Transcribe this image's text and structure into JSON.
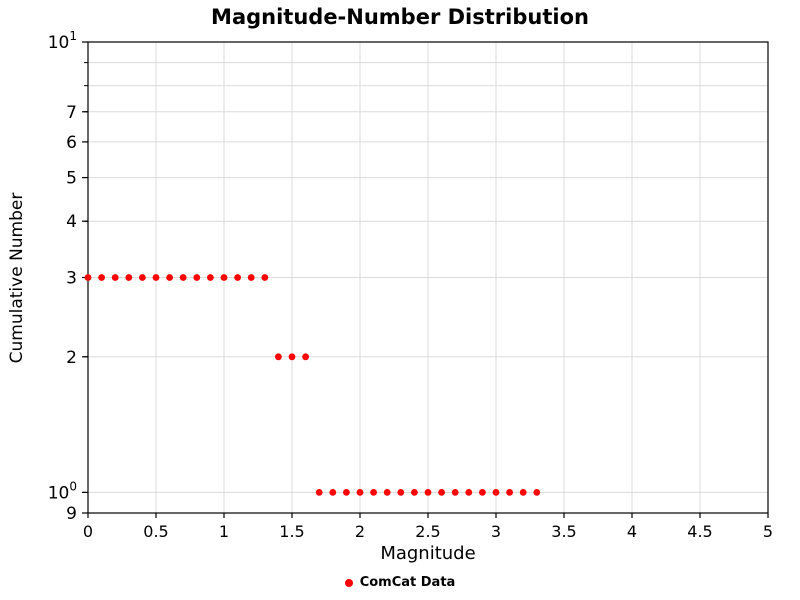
{
  "chart_data": {
    "type": "scatter",
    "title": "Magnitude-Number Distribution",
    "xlabel": "Magnitude",
    "ylabel": "Cumulative Number",
    "xlim": [
      0,
      5
    ],
    "ylim": [
      0.9,
      10
    ],
    "yscale": "log",
    "grid": true,
    "grid_color": "#dcdcdc",
    "axis_color": "#000000",
    "x_ticks": [
      0,
      0.5,
      1,
      1.5,
      2,
      2.5,
      3,
      3.5,
      4,
      4.5,
      5
    ],
    "x_tick_labels": [
      "0",
      "0.5",
      "1",
      "1.5",
      "2",
      "2.5",
      "3",
      "3.5",
      "4",
      "4.5",
      "5"
    ],
    "y_ticks": [
      {
        "value": 10,
        "base": "10",
        "sup": "1"
      },
      {
        "value": 7,
        "label": "7"
      },
      {
        "value": 6,
        "label": "6"
      },
      {
        "value": 5,
        "label": "5"
      },
      {
        "value": 4,
        "label": "4"
      },
      {
        "value": 3,
        "label": "3"
      },
      {
        "value": 2,
        "label": "2"
      },
      {
        "value": 1,
        "base": "10",
        "sup": "0"
      },
      {
        "value": 0.9,
        "label": "9"
      }
    ],
    "y_gridlines": [
      1,
      2,
      3,
      4,
      5,
      6,
      7,
      8,
      9,
      10
    ],
    "legend_position": "bottom",
    "series": [
      {
        "name": "ComCat Data",
        "color": "#ff0000",
        "marker": "circle",
        "marker_radius": 3.4,
        "points": [
          [
            0.0,
            3
          ],
          [
            0.1,
            3
          ],
          [
            0.2,
            3
          ],
          [
            0.3,
            3
          ],
          [
            0.4,
            3
          ],
          [
            0.5,
            3
          ],
          [
            0.6,
            3
          ],
          [
            0.7,
            3
          ],
          [
            0.8,
            3
          ],
          [
            0.9,
            3
          ],
          [
            1.0,
            3
          ],
          [
            1.1,
            3
          ],
          [
            1.2,
            3
          ],
          [
            1.3,
            3
          ],
          [
            1.4,
            2
          ],
          [
            1.5,
            2
          ],
          [
            1.6,
            2
          ],
          [
            1.7,
            1
          ],
          [
            1.8,
            1
          ],
          [
            1.9,
            1
          ],
          [
            2.0,
            1
          ],
          [
            2.1,
            1
          ],
          [
            2.2,
            1
          ],
          [
            2.3,
            1
          ],
          [
            2.4,
            1
          ],
          [
            2.5,
            1
          ],
          [
            2.6,
            1
          ],
          [
            2.7,
            1
          ],
          [
            2.8,
            1
          ],
          [
            2.9,
            1
          ],
          [
            3.0,
            1
          ],
          [
            3.1,
            1
          ],
          [
            3.2,
            1
          ],
          [
            3.3,
            1
          ]
        ]
      }
    ]
  }
}
